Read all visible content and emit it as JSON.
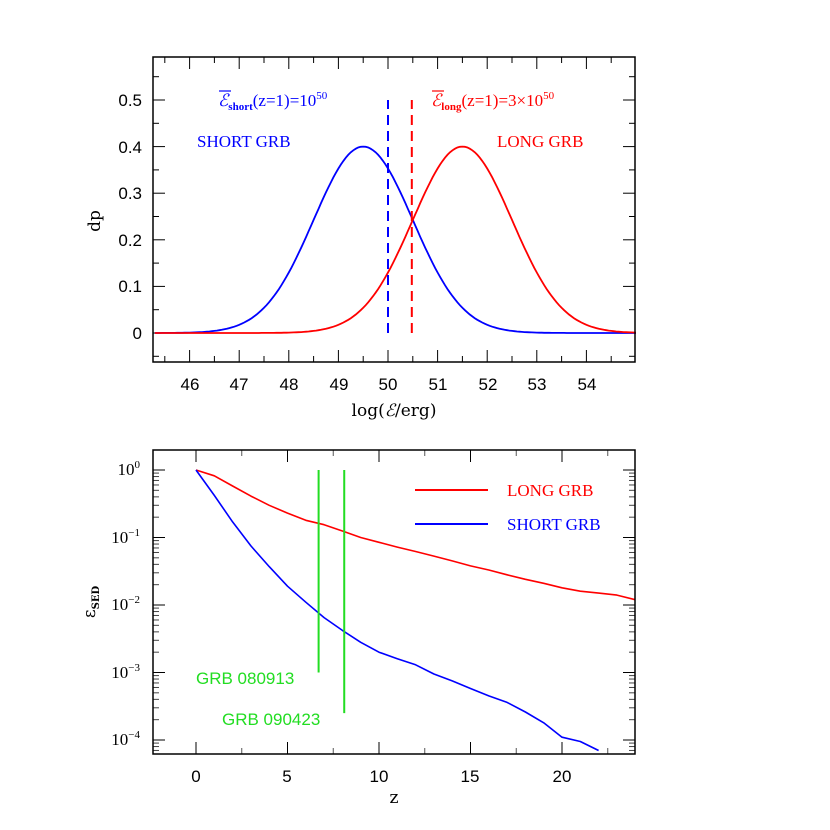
{
  "chart_data": [
    {
      "type": "line",
      "panel": "top",
      "title": "",
      "xlabel": "log(ℰ/erg)",
      "ylabel": "dp",
      "xlim": [
        45.3,
        55.0
      ],
      "ylim": [
        -0.06,
        0.59
      ],
      "xticks": [
        "46",
        "47",
        "48",
        "49",
        "50",
        "51",
        "52",
        "53",
        "54"
      ],
      "yticks": [
        "0",
        "0.1",
        "0.2",
        "0.3",
        "0.4",
        "0.5"
      ],
      "grid": false,
      "series": [
        {
          "name": "SHORT GRB",
          "color": "#0000ff",
          "kind": "gaussian",
          "mean": 49.5,
          "sigma": 1.0,
          "peak": 0.4
        },
        {
          "name": "LONG GRB",
          "color": "#ff0000",
          "kind": "gaussian",
          "mean": 51.5,
          "sigma": 1.0,
          "peak": 0.4
        }
      ],
      "vlines": [
        {
          "x": 50.0,
          "color": "#0000ff",
          "style": "dashed",
          "label": "ℰshort(z=1)=10^50"
        },
        {
          "x": 50.48,
          "color": "#ff0000",
          "style": "dashed",
          "label": "ℰlong(z=1)=3×10^50"
        }
      ],
      "annotations": [
        {
          "text": "SHORT GRB",
          "color": "#0000ff"
        },
        {
          "text": "LONG GRB",
          "color": "#ff0000"
        }
      ]
    },
    {
      "type": "line",
      "panel": "bottom",
      "title": "",
      "xlabel": "z",
      "ylabel": "εSED",
      "yscale": "log",
      "xlim": [
        -2.3,
        24.0
      ],
      "ylim": [
        7e-05,
        1.6
      ],
      "xticks": [
        "0",
        "5",
        "10",
        "15",
        "20"
      ],
      "yticks": [
        "10^0",
        "10^-1",
        "10^-2",
        "10^-3",
        "10^-4"
      ],
      "grid": false,
      "legend_position": "upper right",
      "x": [
        0,
        1,
        2,
        3,
        4,
        5,
        6,
        7,
        8,
        9,
        10,
        11,
        12,
        13,
        14,
        15,
        16,
        17,
        18,
        19,
        20,
        21,
        22,
        23,
        24
      ],
      "series": [
        {
          "name": "LONG GRB",
          "color": "#ff0000",
          "values": [
            1.0,
            0.82,
            0.58,
            0.41,
            0.3,
            0.23,
            0.18,
            0.155,
            0.125,
            0.1,
            0.085,
            0.072,
            0.062,
            0.053,
            0.045,
            0.038,
            0.033,
            0.028,
            0.024,
            0.021,
            0.018,
            0.016,
            0.015,
            0.014,
            0.012
          ]
        },
        {
          "name": "SHORT GRB",
          "color": "#0000ff",
          "values": [
            1.0,
            0.42,
            0.17,
            0.075,
            0.037,
            0.019,
            0.011,
            0.0065,
            0.0042,
            0.0028,
            0.002,
            0.0016,
            0.0013,
            0.00095,
            0.00075,
            0.00058,
            0.00045,
            0.00036,
            0.00026,
            0.00018,
            0.00011,
            9.5e-05,
            7e-05,
            null,
            null
          ]
        }
      ],
      "vlines": [
        {
          "x": 6.7,
          "color": "#00dd00",
          "from": 0.001,
          "to": 1.0,
          "label": "GRB 080913"
        },
        {
          "x": 8.1,
          "color": "#00dd00",
          "from": 0.00025,
          "to": 1.0,
          "label": "GRB 090423"
        }
      ]
    }
  ],
  "top": {
    "ylabel": "dp",
    "xlabel_main": "log(",
    "xlabel_sym": "ℰ",
    "xlabel_tail": "/erg)",
    "yticks": [
      "0",
      "0.1",
      "0.2",
      "0.3",
      "0.4",
      "0.5"
    ],
    "xticks": [
      "46",
      "47",
      "48",
      "49",
      "50",
      "51",
      "52",
      "53",
      "54"
    ],
    "short_label": "SHORT GRB",
    "long_label": "LONG GRB",
    "short_mean_sym": "ℰ",
    "short_mean_sub": "short",
    "short_mean_eq": "(z=1)=10",
    "short_mean_exp": "50",
    "long_mean_sym": "ℰ",
    "long_mean_sub": "long",
    "long_mean_eq": "(z=1)=3×10",
    "long_mean_exp": "50"
  },
  "bottom": {
    "ylabel_sym": "ε",
    "ylabel_sub": "SED",
    "xlabel": "z",
    "xticks": [
      "0",
      "5",
      "10",
      "15",
      "20"
    ],
    "ytick_base": "10",
    "ytick_exps": [
      "0",
      "−1",
      "−2",
      "−3",
      "−4"
    ],
    "legend_long": "LONG GRB",
    "legend_short": "SHORT GRB",
    "grb1_label": "GRB 080913",
    "grb2_label": "GRB 090423"
  },
  "colors": {
    "short": "#0000ff",
    "long": "#ff0000",
    "grb": "#22dd22",
    "frame": "#000000",
    "minor_tick": "#555555"
  }
}
